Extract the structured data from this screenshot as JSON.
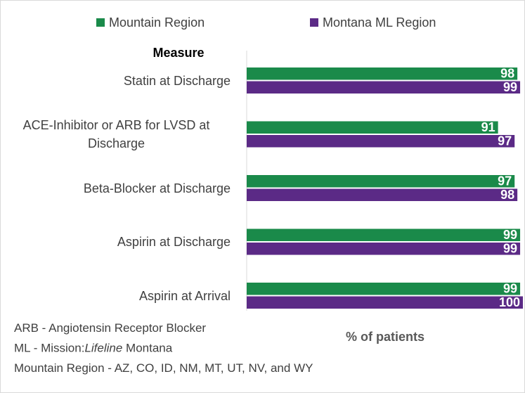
{
  "chart_data": {
    "type": "hbar",
    "y_label": "Measure",
    "x_label": "% of patients",
    "categories": [
      "Statin at Discharge",
      "ACE-Inhibitor or ARB for LVSD at Discharge",
      "Beta-Blocker at Discharge",
      "Aspirin at Discharge",
      "Aspirin at Arrival"
    ],
    "series": [
      {
        "name": "Mountain Region",
        "color": "#1a8a4a",
        "values": [
          98,
          91,
          97,
          99,
          99
        ]
      },
      {
        "name": "Montana ML Region",
        "color": "#5b2a86",
        "values": [
          99,
          97,
          98,
          99,
          100
        ]
      }
    ],
    "xlim": [
      0,
      100
    ],
    "legend": "top",
    "notes": [
      [
        "ARB - Angiotensin Receptor Blocker"
      ],
      [
        "ML - Mission:",
        "Lifeline",
        " Montana"
      ],
      [
        "Mountain Region - AZ, CO, ID, NM, MT, UT, NV, and WY"
      ]
    ]
  }
}
